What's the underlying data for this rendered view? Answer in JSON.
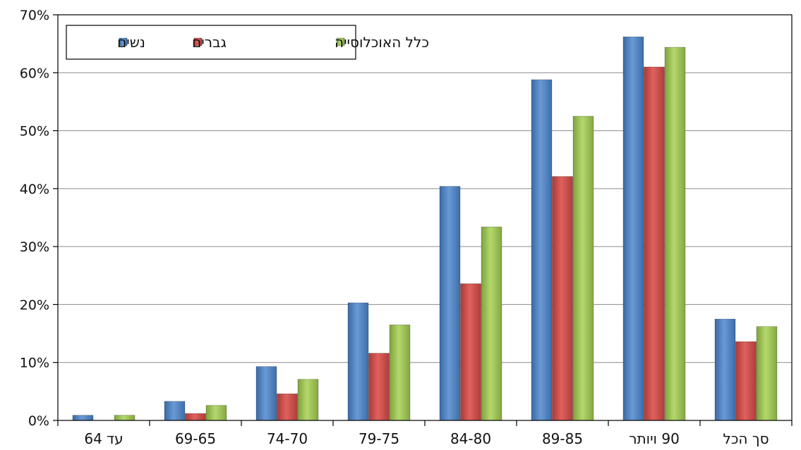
{
  "chart_data": {
    "type": "bar",
    "title": "",
    "xlabel": "",
    "ylabel": "",
    "ylim": [
      0,
      0.7
    ],
    "y_ticks": [
      "0%",
      "10%",
      "20%",
      "30%",
      "40%",
      "50%",
      "60%",
      "70%"
    ],
    "grid": true,
    "legend_position": "top-left",
    "categories": [
      "עד 64",
      "69-65",
      "74-70",
      "79-75",
      "84-80",
      "89-85",
      "90 ויותר",
      "סך הכל"
    ],
    "series": [
      {
        "name": "נשים",
        "color": "#4f81bd",
        "values": [
          0.009,
          0.033,
          0.093,
          0.203,
          0.404,
          0.588,
          0.662,
          0.175
        ]
      },
      {
        "name": "גברים",
        "color": "#c0504d",
        "values": [
          0.0,
          0.012,
          0.046,
          0.116,
          0.236,
          0.421,
          0.61,
          0.136
        ]
      },
      {
        "name": "כלל האוכלוסייה",
        "color": "#9bbb59",
        "values": [
          0.009,
          0.026,
          0.071,
          0.165,
          0.334,
          0.525,
          0.644,
          0.162
        ]
      }
    ]
  }
}
